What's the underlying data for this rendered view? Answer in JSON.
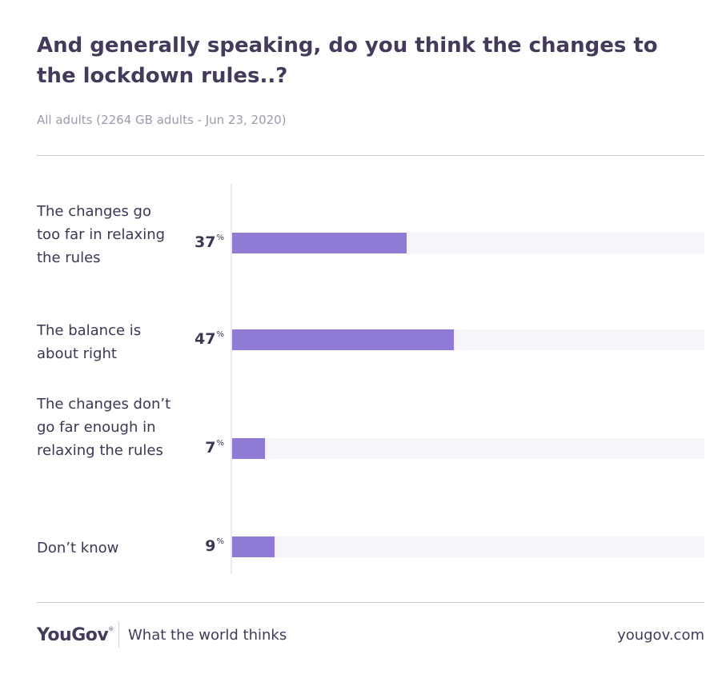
{
  "title": "And generally speaking, do you think the changes to the lockdown rules..?",
  "subtitle": "All adults (2264 GB adults - Jun 23, 2020)",
  "chart_data": {
    "type": "bar",
    "orientation": "horizontal",
    "categories": [
      "The changes go too far in relaxing the rules",
      "The balance is about right",
      "The changes don’t go far enough in relaxing the rules",
      "Don’t know"
    ],
    "values": [
      37,
      47,
      7,
      9
    ],
    "value_suffix": "%",
    "xlim": [
      0,
      100
    ],
    "bar_color": "#8f7bd6",
    "track_color": "#f6f5fa",
    "grid": false,
    "legend": "none"
  },
  "footer": {
    "logo": "YouGov",
    "logo_mark": "®",
    "tagline": "What the world thinks",
    "site": "yougov.com"
  }
}
